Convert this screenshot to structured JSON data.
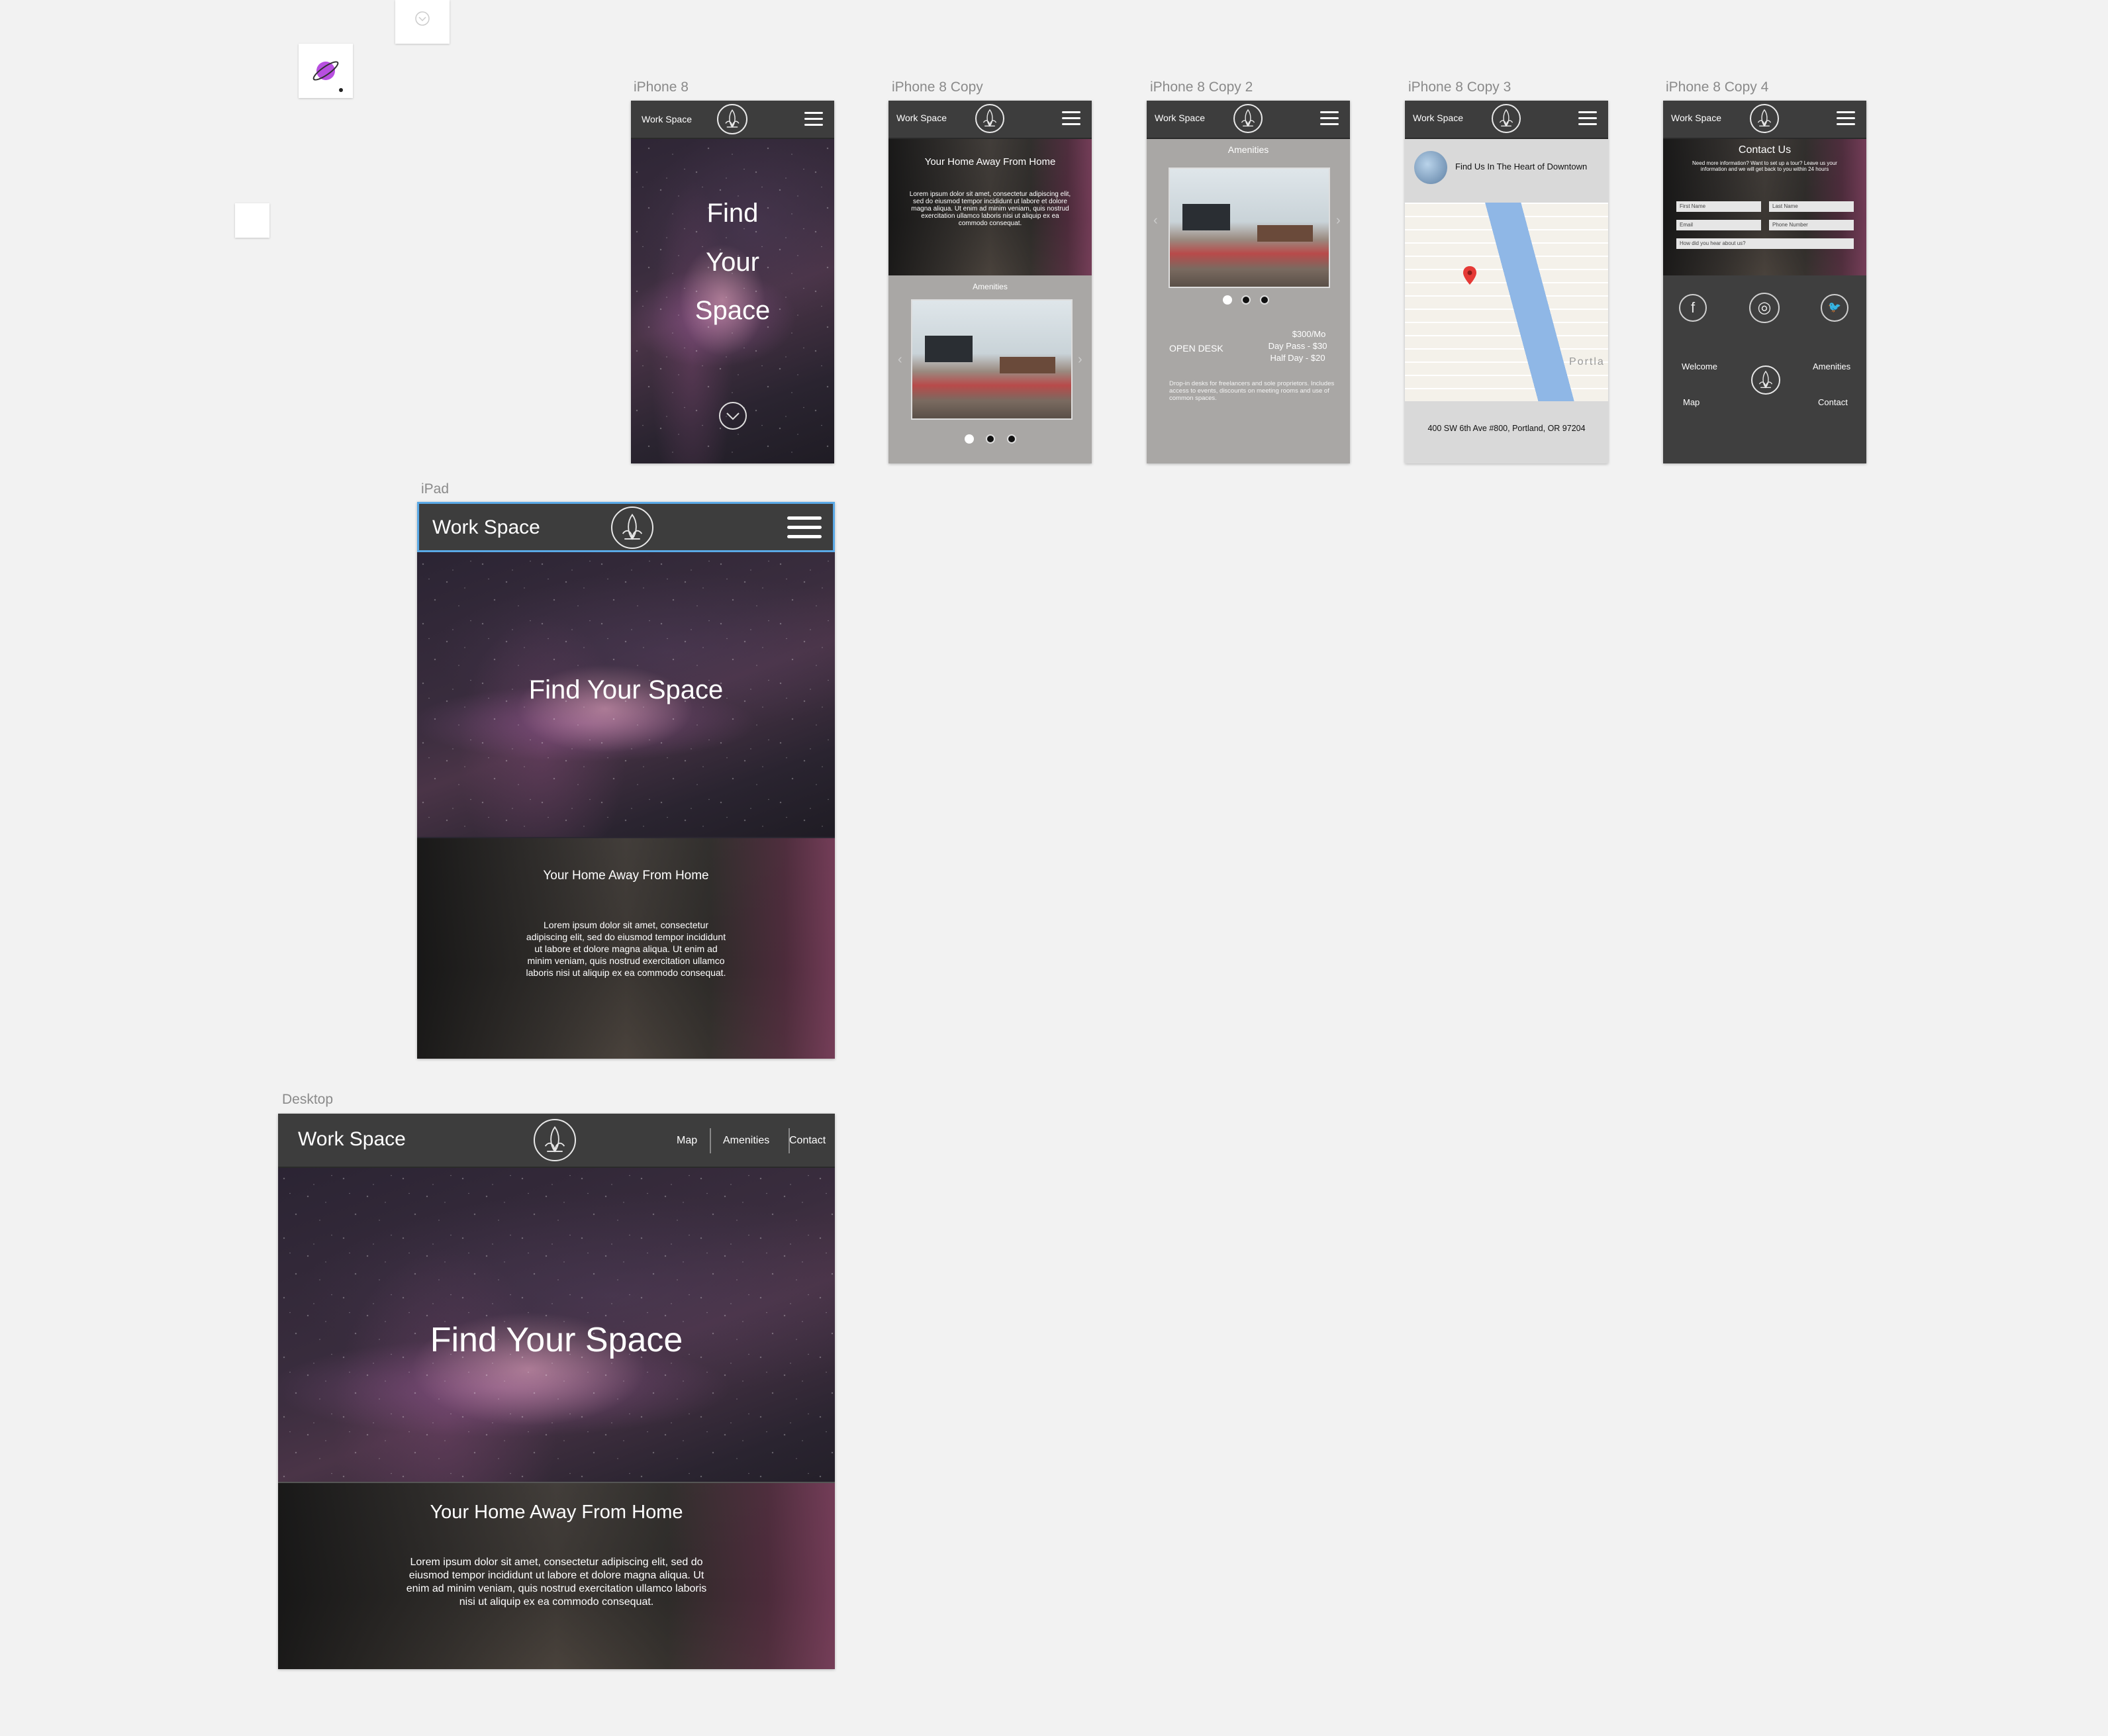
{
  "canvas_tools": {
    "plugin_icon": "planet-icon",
    "small_tool_icon": "chevron-down-circle-icon"
  },
  "artboards": {
    "iphone8": {
      "label": "iPhone 8",
      "brand": "Work Space",
      "hero_line1": "Find",
      "hero_line2": "Your",
      "hero_line3": "Space",
      "scroll_icon": "chevron-down-circle-icon"
    },
    "iphone8_copy": {
      "label": "iPhone 8 Copy",
      "brand": "Work Space",
      "heading": "Your Home Away From Home",
      "body": "Lorem ipsum dolor sit amet, consectetur adipiscing elit, sed do eiusmod tempor incididunt ut labore et dolore magna aliqua. Ut enim ad minim veniam, quis nostrud exercitation ullamco laboris nisi ut aliquip ex ea commodo consequat.",
      "section_title": "Amenities"
    },
    "iphone8_copy2": {
      "label": "iPhone 8 Copy 2",
      "brand": "Work Space",
      "section_title": "Amenities",
      "plan_name": "OPEN DESK",
      "price_month": "$300/Mo",
      "price_day": "Day Pass - $30",
      "price_half": "Half Day - $20",
      "description": "Drop-in desks for freelancers and sole proprietors. Includes access to events, discounts on meeting rooms and use of common spaces."
    },
    "iphone8_copy3": {
      "label": "iPhone 8 Copy 3",
      "brand": "Work Space",
      "heading": "Find Us In The Heart of Downtown",
      "address": "400 SW 6th Ave #800, Portland, OR 97204",
      "map_label": "Portla"
    },
    "iphone8_copy4": {
      "label": "iPhone 8 Copy 4",
      "brand": "Work Space",
      "heading": "Contact Us",
      "subtext": "Need more information? Want to set up a tour? Leave us your information and we will get back to you within 24 hours",
      "first_name": "First Name",
      "last_name": "Last Name",
      "email": "Email",
      "phone": "Phone Number",
      "how_heard": "How did you hear about us?",
      "facebook": "f",
      "instagram": "◎",
      "twitter": "🐦",
      "footer_welcome": "Welcome",
      "footer_amenities": "Amenities",
      "footer_map": "Map",
      "footer_contact": "Contact"
    },
    "ipad": {
      "label": "iPad",
      "brand": "Work Space",
      "hero": "Find Your Space",
      "heading": "Your Home Away From Home",
      "body": "Lorem ipsum dolor sit amet, consectetur adipiscing elit, sed do eiusmod tempor incididunt ut labore et dolore magna aliqua. Ut enim ad minim veniam, quis nostrud exercitation ullamco laboris nisi ut aliquip ex ea commodo consequat."
    },
    "desktop": {
      "label": "Desktop",
      "brand": "Work Space",
      "nav": [
        "Map",
        "Amenities",
        "Contact"
      ],
      "hero": "Find Your Space",
      "heading": "Your Home Away From Home",
      "body": "Lorem ipsum dolor sit amet, consectetur adipiscing elit, sed do eiusmod tempor incididunt ut labore et dolore magna aliqua. Ut enim ad minim veniam, quis nostrud exercitation ullamco laboris nisi ut aliquip ex ea commodo consequat."
    }
  },
  "colors": {
    "canvas": "#f2f2f2",
    "header": "#3d3d3d",
    "panel_gray": "#a9a7a5",
    "footer_dark": "#3f3f3f",
    "selection": "#5aa9e6"
  }
}
